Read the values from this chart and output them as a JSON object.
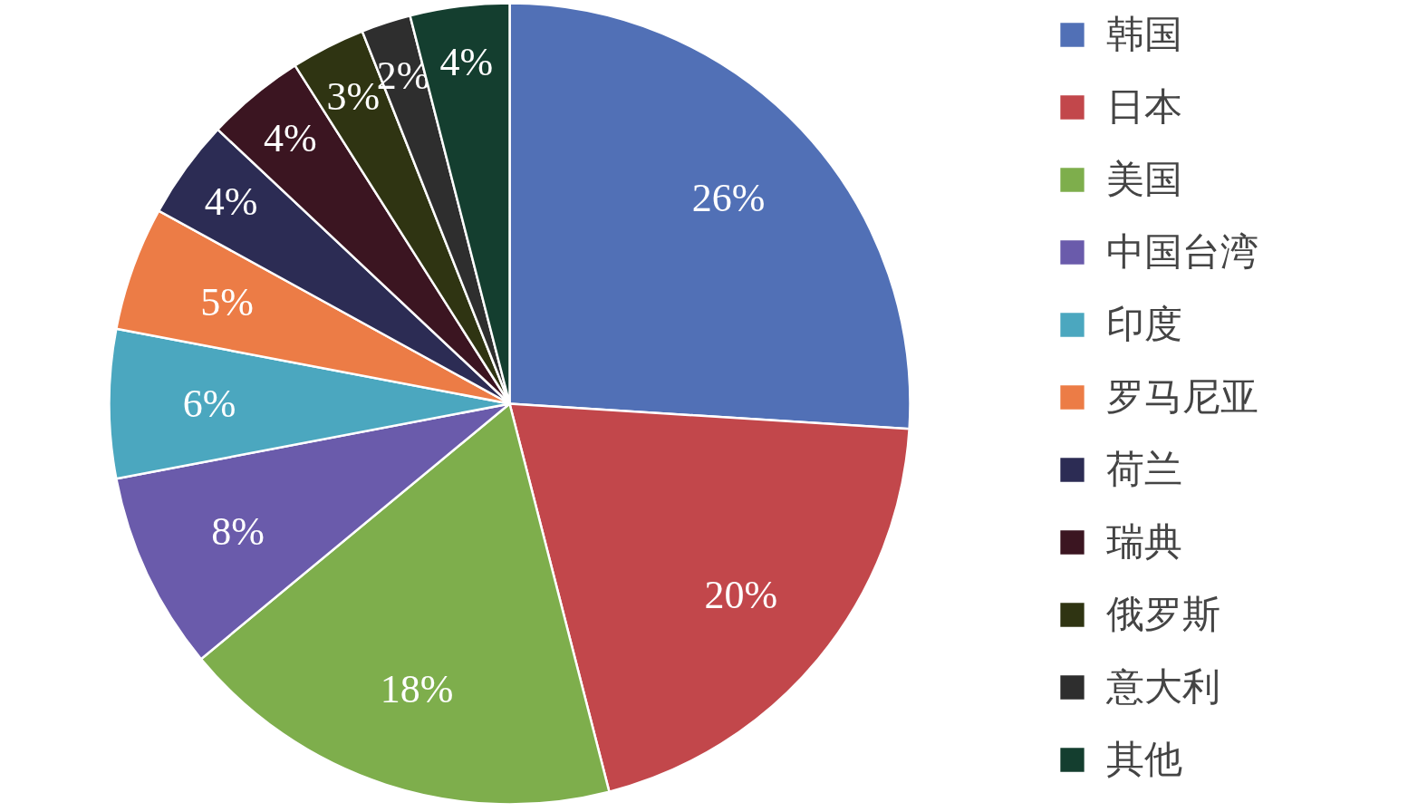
{
  "chart_data": {
    "type": "pie",
    "categories": [
      "韩国",
      "日本",
      "美国",
      "中国台湾",
      "印度",
      "罗马尼亚",
      "荷兰",
      "瑞典",
      "俄罗斯",
      "意大利",
      "其他"
    ],
    "values": [
      26,
      20,
      18,
      8,
      6,
      5,
      4,
      4,
      3,
      2,
      4
    ],
    "value_labels": [
      "26%",
      "20%",
      "18%",
      "8%",
      "6%",
      "5%",
      "4%",
      "4%",
      "3%",
      "2%",
      "4%"
    ],
    "colors": [
      "#5170b6",
      "#c2474b",
      "#7eae4c",
      "#6a5bab",
      "#4ba7bf",
      "#ec7c46",
      "#2c2c54",
      "#3b1521",
      "#2f3412",
      "#2e2e2e",
      "#143e2f"
    ],
    "legend": "right"
  }
}
